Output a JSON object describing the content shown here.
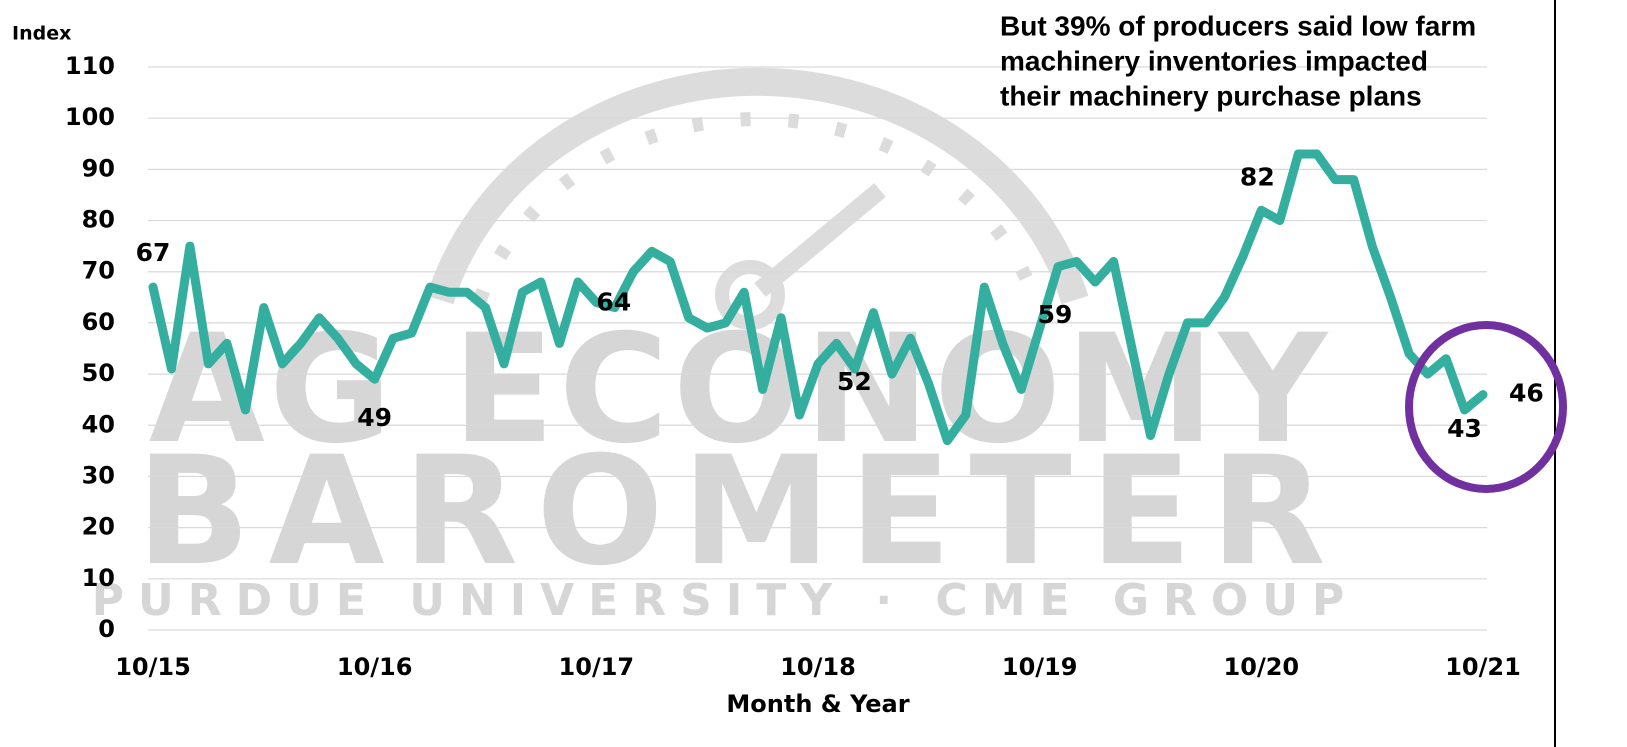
{
  "chart_data": {
    "type": "line",
    "y_axis_label": "Index",
    "x_axis_label": "Month & Year",
    "annotation": [
      "But 39% of producers said low farm",
      "machinery inventories impacted",
      "their machinery purchase plans"
    ],
    "watermark": [
      "AG ECONOMY",
      "BAROMETER",
      "PURDUE UNIVERSITY · CME GROUP"
    ],
    "categories": [
      "10/15",
      null,
      null,
      null,
      null,
      null,
      null,
      null,
      null,
      null,
      null,
      null,
      "10/16",
      null,
      null,
      null,
      null,
      null,
      null,
      null,
      null,
      null,
      null,
      null,
      "10/17",
      null,
      null,
      null,
      null,
      null,
      null,
      null,
      null,
      null,
      null,
      null,
      "10/18",
      null,
      null,
      null,
      null,
      null,
      null,
      null,
      null,
      null,
      null,
      null,
      "10/19",
      null,
      null,
      null,
      null,
      null,
      null,
      null,
      null,
      null,
      null,
      null,
      "10/20",
      null,
      null,
      null,
      null,
      null,
      null,
      null,
      null,
      null,
      null,
      null,
      "10/21"
    ],
    "values": [
      67,
      51,
      75,
      52,
      56,
      43,
      63,
      52,
      56,
      61,
      57,
      52,
      49,
      57,
      58,
      67,
      66,
      66,
      63,
      52,
      66,
      68,
      56,
      68,
      64,
      63,
      70,
      74,
      72,
      61,
      59,
      60,
      66,
      47,
      61,
      42,
      52,
      56,
      51,
      62,
      50,
      57,
      48,
      37,
      42,
      67,
      56,
      47,
      59,
      71,
      72,
      68,
      72,
      55,
      38,
      50,
      60,
      60,
      65,
      73,
      82,
      80,
      93,
      93,
      88,
      88,
      75,
      65,
      54,
      50,
      53,
      43,
      46
    ],
    "labeled_points": [
      0,
      12,
      24,
      36,
      48,
      60,
      71,
      72
    ],
    "color": "#33ae9f",
    "ylim": [
      0,
      110
    ],
    "yticks": [
      0,
      10,
      20,
      30,
      40,
      50,
      60,
      70,
      80,
      90,
      100,
      110
    ],
    "grid": true
  }
}
